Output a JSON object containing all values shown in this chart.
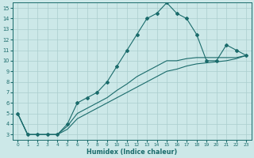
{
  "xlabel": "Humidex (Indice chaleur)",
  "bg_color": "#cce8e8",
  "line_color": "#1a6b6b",
  "grid_color": "#aacece",
  "xlim": [
    -0.5,
    23.5
  ],
  "ylim": [
    2.5,
    15.5
  ],
  "xticks": [
    0,
    1,
    2,
    3,
    4,
    5,
    6,
    7,
    8,
    9,
    10,
    11,
    12,
    13,
    14,
    15,
    16,
    17,
    18,
    19,
    20,
    21,
    22,
    23
  ],
  "yticks": [
    3,
    4,
    5,
    6,
    7,
    8,
    9,
    10,
    11,
    12,
    13,
    14,
    15
  ],
  "series1": [
    [
      0,
      5.0
    ],
    [
      1,
      3.0
    ],
    [
      2,
      3.0
    ],
    [
      3,
      3.0
    ],
    [
      4,
      3.0
    ],
    [
      5,
      4.0
    ],
    [
      6,
      6.0
    ],
    [
      7,
      6.5
    ],
    [
      8,
      7.0
    ],
    [
      9,
      8.0
    ],
    [
      10,
      9.5
    ],
    [
      11,
      11.0
    ],
    [
      12,
      12.5
    ],
    [
      13,
      14.0
    ],
    [
      14,
      14.5
    ],
    [
      15,
      15.5
    ],
    [
      16,
      14.5
    ],
    [
      17,
      14.0
    ],
    [
      18,
      12.5
    ],
    [
      19,
      10.0
    ],
    [
      20,
      10.0
    ],
    [
      21,
      11.5
    ],
    [
      22,
      11.0
    ],
    [
      23,
      10.5
    ]
  ],
  "series2": [
    [
      0,
      5.0
    ],
    [
      1,
      3.0
    ],
    [
      2,
      3.0
    ],
    [
      3,
      3.0
    ],
    [
      4,
      3.0
    ],
    [
      5,
      3.5
    ],
    [
      6,
      4.5
    ],
    [
      7,
      5.0
    ],
    [
      8,
      5.5
    ],
    [
      9,
      6.0
    ],
    [
      10,
      6.5
    ],
    [
      11,
      7.0
    ],
    [
      12,
      7.5
    ],
    [
      13,
      8.0
    ],
    [
      14,
      8.5
    ],
    [
      15,
      9.0
    ],
    [
      16,
      9.2
    ],
    [
      17,
      9.5
    ],
    [
      18,
      9.7
    ],
    [
      19,
      9.8
    ],
    [
      20,
      9.9
    ],
    [
      21,
      10.0
    ],
    [
      22,
      10.2
    ],
    [
      23,
      10.5
    ]
  ],
  "series3": [
    [
      0,
      5.0
    ],
    [
      1,
      3.0
    ],
    [
      2,
      3.0
    ],
    [
      3,
      3.0
    ],
    [
      4,
      3.0
    ],
    [
      5,
      3.8
    ],
    [
      6,
      5.0
    ],
    [
      7,
      5.5
    ],
    [
      8,
      6.0
    ],
    [
      9,
      6.5
    ],
    [
      10,
      7.2
    ],
    [
      11,
      7.8
    ],
    [
      12,
      8.5
    ],
    [
      13,
      9.0
    ],
    [
      14,
      9.5
    ],
    [
      15,
      10.0
    ],
    [
      16,
      10.0
    ],
    [
      17,
      10.2
    ],
    [
      18,
      10.3
    ],
    [
      19,
      10.3
    ],
    [
      20,
      10.3
    ],
    [
      21,
      10.3
    ],
    [
      22,
      10.3
    ],
    [
      23,
      10.5
    ]
  ]
}
